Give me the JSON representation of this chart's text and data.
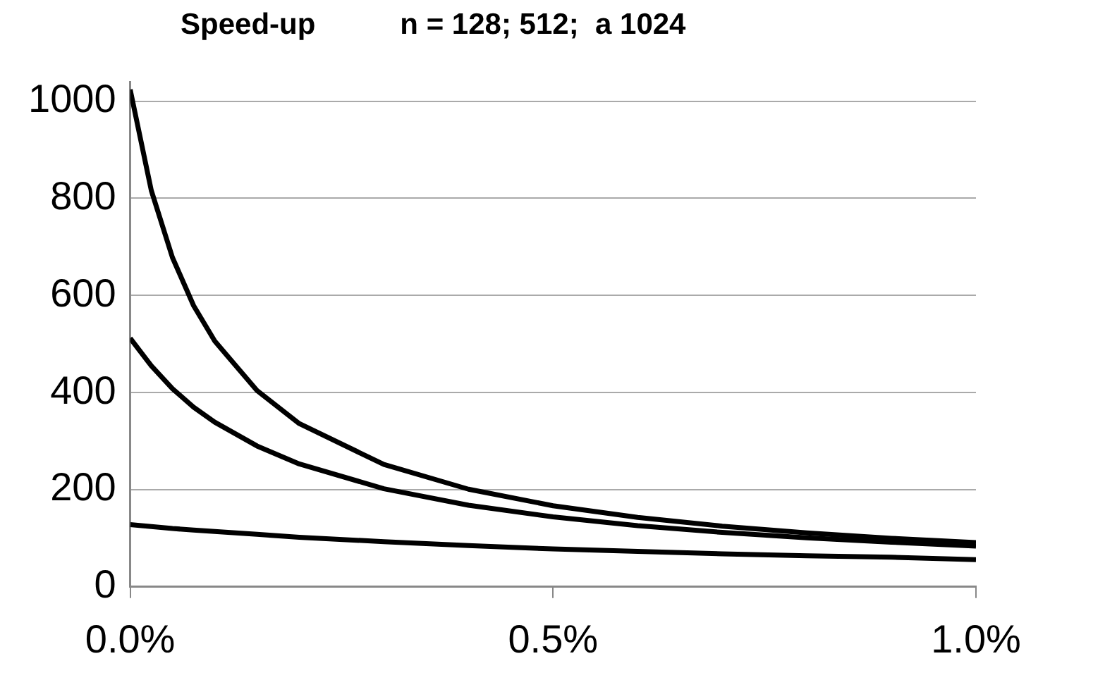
{
  "chart_data": {
    "type": "line",
    "title": "Speed-up",
    "subtitle": "n = 128; 512;  a 1024",
    "x": [
      0,
      0.025,
      0.05,
      0.075,
      0.1,
      0.15,
      0.2,
      0.3,
      0.4,
      0.5,
      0.6,
      0.7,
      0.8,
      0.9,
      1.0
    ],
    "series": [
      {
        "color": "#000000",
        "values": [
          128,
          124,
          120,
          117,
          114,
          108,
          102,
          93,
          85,
          78,
          73,
          68,
          64,
          61,
          56
        ]
      },
      {
        "color": "#000000",
        "values": [
          512,
          455,
          408,
          370,
          339,
          290,
          253,
          202,
          168,
          144,
          126,
          112,
          101,
          92,
          84
        ]
      },
      {
        "color": "#000000",
        "values": [
          1024,
          816,
          678,
          579,
          506,
          404,
          336,
          252,
          201,
          167,
          143,
          125,
          111,
          100,
          91
        ]
      }
    ],
    "xlim": [
      0,
      1
    ],
    "xticks": [
      {
        "value": 0,
        "label": "0.0%"
      },
      {
        "value": 0.5,
        "label": "0.5%"
      },
      {
        "value": 1,
        "label": "1.0%"
      }
    ],
    "ylim": [
      0,
      1040
    ],
    "yticks": [
      0,
      200,
      400,
      600,
      800,
      1000
    ],
    "grid": "y",
    "legend": false,
    "marker": "none",
    "line_style": "solid"
  }
}
